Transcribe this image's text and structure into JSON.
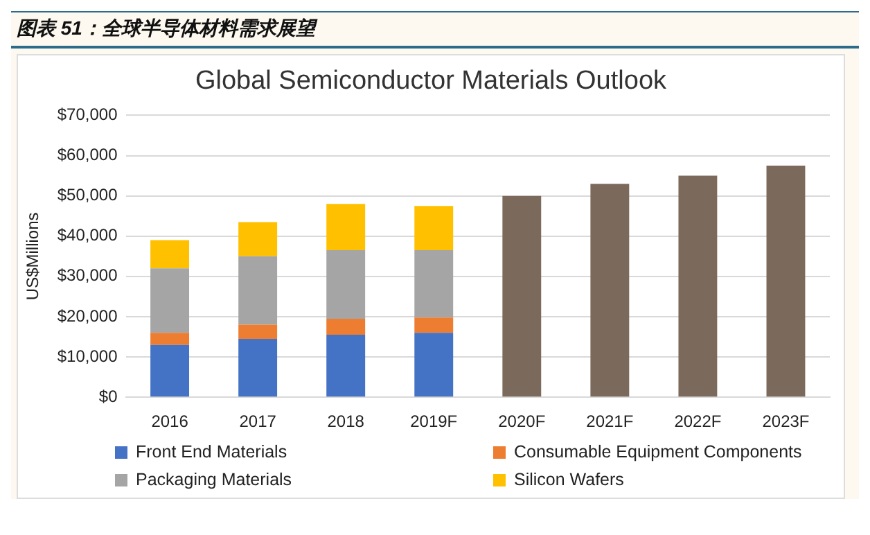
{
  "chart_data": {
    "type": "bar",
    "title": "图表 51：全球半导体材料需求展望",
    "subtitle": "Global Semiconductor Materials Outlook",
    "ylabel": "US$Millions",
    "categories": [
      "2016",
      "2017",
      "2018",
      "2019F",
      "2020F",
      "2021F",
      "2022F",
      "2023F"
    ],
    "stacked": true,
    "series": [
      {
        "name": "Front End Materials",
        "color": "#4472c4",
        "values": [
          13000,
          14500,
          15500,
          16000,
          null,
          null,
          null,
          null
        ]
      },
      {
        "name": "Consumable Equipment Components",
        "color": "#ed7d31",
        "values": [
          3000,
          3500,
          4000,
          3800,
          null,
          null,
          null,
          null
        ]
      },
      {
        "name": "Packaging Materials",
        "color": "#a5a5a5",
        "values": [
          16000,
          17000,
          17000,
          16700,
          null,
          null,
          null,
          null
        ]
      },
      {
        "name": "Silicon Wafers",
        "color": "#ffc000",
        "values": [
          7000,
          8500,
          11500,
          11000,
          null,
          null,
          null,
          null
        ]
      },
      {
        "color": "#7b6a5c",
        "values": [
          null,
          null,
          null,
          null,
          50000,
          53000,
          55000,
          57500
        ]
      }
    ],
    "ylim": [
      0,
      70000
    ],
    "yticks": [
      {
        "value": 0,
        "label": "$0"
      },
      {
        "value": 10000,
        "label": "$10,000"
      },
      {
        "value": 20000,
        "label": "$20,000"
      },
      {
        "value": 30000,
        "label": "$30,000"
      },
      {
        "value": 40000,
        "label": "$40,000"
      },
      {
        "value": 50000,
        "label": "$50,000"
      },
      {
        "value": 60000,
        "label": "$60,000"
      },
      {
        "value": 70000,
        "label": "$70,000"
      }
    ],
    "grid": "y",
    "legend": "bottom"
  }
}
